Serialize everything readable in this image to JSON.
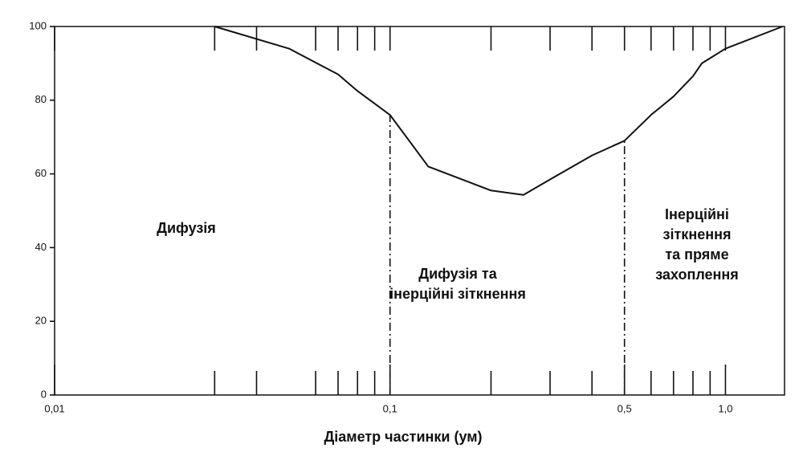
{
  "chart_data": {
    "type": "line",
    "xlabel": "Діаметр частинки (ум)",
    "x": [
      0.03,
      0.05,
      0.07,
      0.08,
      0.1,
      0.13,
      0.2,
      0.25,
      0.3,
      0.4,
      0.5,
      0.6,
      0.7,
      0.8,
      0.85,
      1.0,
      1.48
    ],
    "series": [
      {
        "color": "#111111",
        "values": [
          100,
          94,
          87,
          82.5,
          76,
          62,
          55.5,
          54.3,
          58.5,
          65,
          69,
          76,
          81,
          86.5,
          90,
          94,
          100
        ]
      }
    ],
    "xscale": "log",
    "xlim": [
      0.01,
      1.5
    ],
    "ylim": [
      0,
      100
    ],
    "xticks": [
      {
        "value": 0.01,
        "label": "0,01"
      },
      {
        "value": 0.1,
        "label": "0,1"
      },
      {
        "value": 0.5,
        "label": "0,5"
      },
      {
        "value": 1.0,
        "label": "1,0"
      }
    ],
    "minor_xticks": [
      0.03,
      0.04,
      0.06,
      0.07,
      0.08,
      0.09,
      0.2,
      0.3,
      0.4,
      0.6,
      0.7,
      0.8,
      0.9
    ],
    "yticks": [
      0,
      20,
      40,
      60,
      80,
      100
    ],
    "boundaries": [
      0.1,
      0.5
    ],
    "annotations": [
      {
        "lines": [
          "Дифузія"
        ]
      },
      {
        "lines": [
          "Дифузія та",
          "інерційні зіткнення"
        ]
      },
      {
        "lines": [
          "Інерційні",
          "зіткнення",
          "та пряме",
          "захоплення"
        ]
      }
    ],
    "grid": false
  }
}
